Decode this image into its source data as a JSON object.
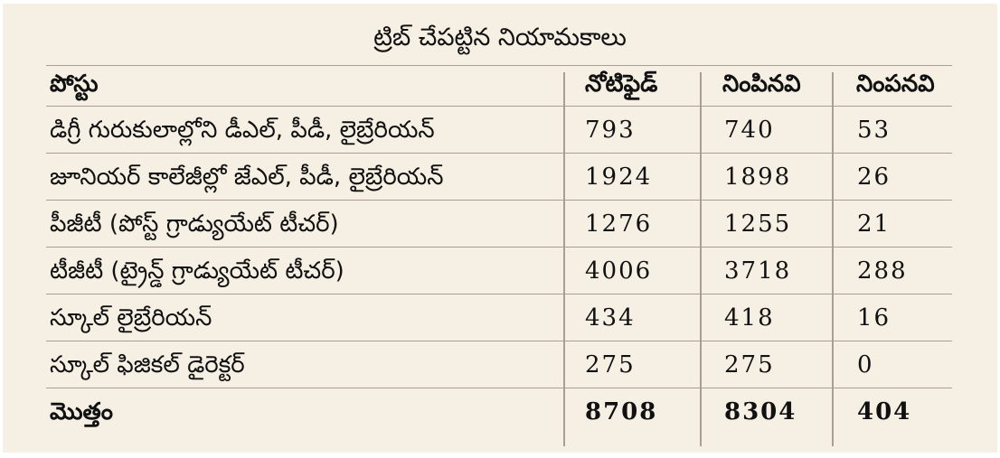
{
  "title": "ట్రిబ్ చేపట్టిన నియామకాలు",
  "table": {
    "headers": [
      "పోస్టు",
      "నోటిఫైడ్",
      "నింపినవి",
      "నింపనవి"
    ],
    "rows": [
      [
        "డిగ్రీ గురుకులాల్లోని డీఎల్, పీడీ, లైబ్రేరియన్",
        "793",
        "740",
        "53"
      ],
      [
        "జూనియర్ కాలేజీల్లో జేఎల్, పీడీ, లైబ్రేరియన్",
        "1924",
        "1898",
        "26"
      ],
      [
        "పీజీటీ (పోస్ట్ గ్రాడ్యుయేట్ టీచర్)",
        "1276",
        "1255",
        "21"
      ],
      [
        "టీజీటీ (ట్రైన్డ్ గ్రాడ్యుయేట్ టీచర్)",
        "4006",
        "3718",
        "288"
      ],
      [
        "స్కూల్ లైబ్రేరియన్",
        "434",
        "418",
        "16"
      ],
      [
        "స్కూల్ ఫిజికల్ డైరెక్టర్",
        "275",
        "275",
        "0"
      ]
    ],
    "total": [
      "మొత్తం",
      "8708",
      "8304",
      "404"
    ]
  },
  "colors": {
    "background": "#f6f0e4",
    "rule": "#a89f90",
    "text": "#111111"
  }
}
